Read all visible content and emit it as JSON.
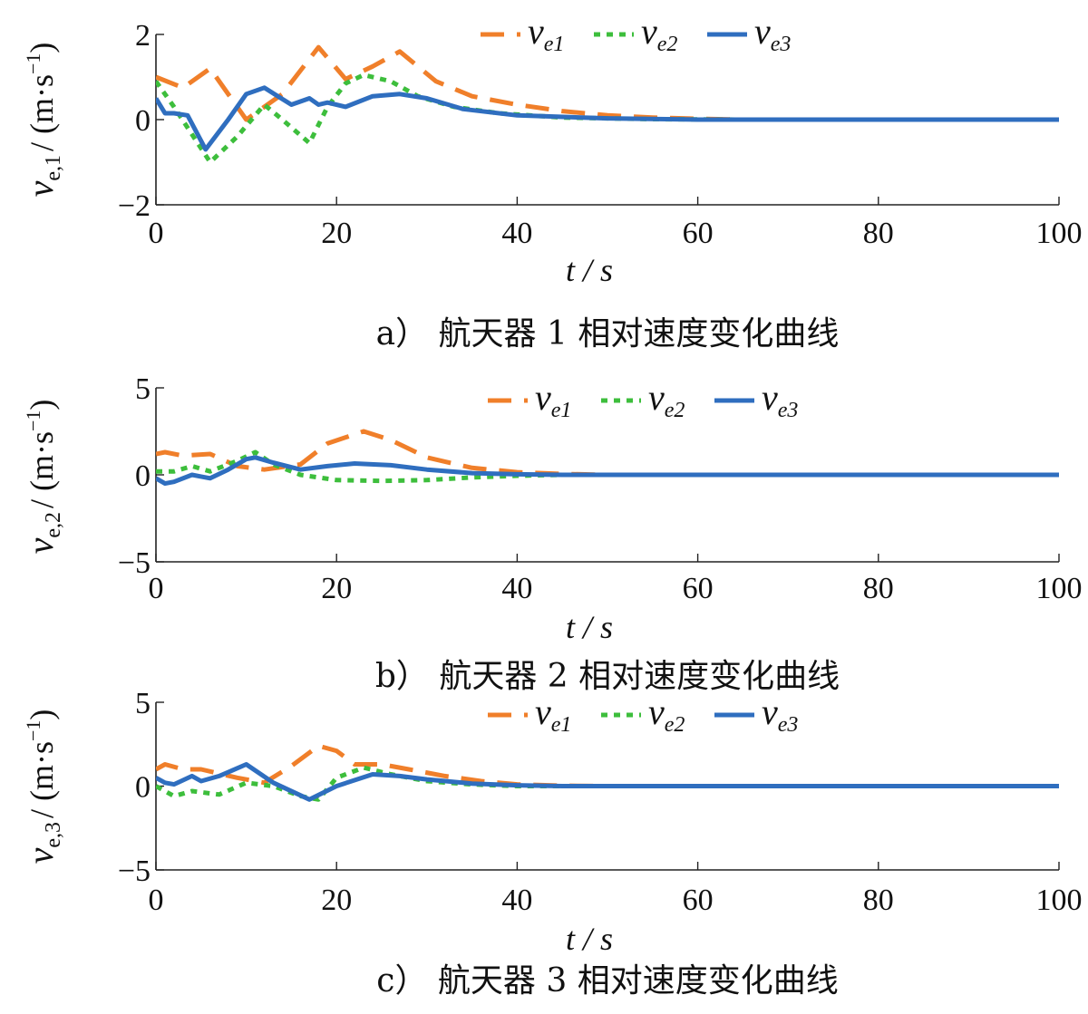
{
  "chart_data": [
    {
      "type": "line",
      "caption": "a） 航天器 1 相对速度变化曲线",
      "xlabel": "t / s",
      "ylabel": "v_{e,1} / (m·s^{-1})",
      "ylabel_main": "v",
      "ylabel_sub": "e,1",
      "ylabel_unit": "/ (m·s",
      "ylabel_exp": "−1",
      "ylabel_close": ")",
      "xlim": [
        0,
        100
      ],
      "ylim": [
        -2,
        2
      ],
      "xticks": [
        0,
        20,
        40,
        60,
        80,
        100
      ],
      "yticks": [
        -2,
        0,
        2
      ],
      "xtick_labels": [
        "0",
        "20",
        "40",
        "60",
        "80",
        "100"
      ],
      "ytick_labels": [
        "−2",
        "0",
        "2"
      ],
      "grid": false,
      "legend_position": "top",
      "series": [
        {
          "name": "v_e1",
          "name_main": "v",
          "name_sub": "e1",
          "color": "#F07F2A",
          "style": "dashed",
          "x": [
            0,
            3,
            6,
            10,
            14,
            18,
            21,
            24,
            27,
            31,
            35,
            40,
            45,
            50,
            55,
            60,
            65,
            70,
            100
          ],
          "y": [
            1.0,
            0.75,
            1.2,
            0.0,
            0.6,
            1.7,
            0.95,
            1.25,
            1.6,
            0.9,
            0.55,
            0.35,
            0.2,
            0.1,
            0.05,
            0.02,
            0.0,
            0.0,
            0.0
          ]
        },
        {
          "name": "v_e2",
          "name_main": "v",
          "name_sub": "e2",
          "color": "#3DBE3C",
          "style": "dotted",
          "x": [
            0,
            2,
            6,
            9,
            12,
            14,
            17,
            19,
            21,
            23,
            26,
            29,
            33,
            38,
            45,
            55,
            65,
            100
          ],
          "y": [
            0.9,
            0.3,
            -1.0,
            -0.4,
            0.35,
            0.0,
            -0.55,
            0.3,
            0.85,
            1.05,
            0.9,
            0.55,
            0.3,
            0.15,
            0.05,
            0.01,
            0.0,
            0.0
          ]
        },
        {
          "name": "v_e3",
          "name_main": "v",
          "name_sub": "e3",
          "color": "#2F6EBF",
          "style": "solid",
          "x": [
            0,
            1,
            2,
            3.5,
            5.5,
            8,
            10,
            12,
            13.5,
            15,
            17,
            18,
            19,
            21,
            24,
            27,
            30,
            34,
            40,
            50,
            60,
            100
          ],
          "y": [
            0.5,
            0.15,
            0.15,
            0.1,
            -0.7,
            0.0,
            0.6,
            0.75,
            0.55,
            0.35,
            0.5,
            0.35,
            0.4,
            0.3,
            0.55,
            0.6,
            0.5,
            0.25,
            0.1,
            0.03,
            0.0,
            0.0
          ]
        }
      ]
    },
    {
      "type": "line",
      "caption": "b） 航天器 2 相对速度变化曲线",
      "xlabel": "t / s",
      "ylabel": "v_{e,2} / (m·s^{-1})",
      "ylabel_main": "v",
      "ylabel_sub": "e,2",
      "ylabel_unit": "/ (m·s",
      "ylabel_exp": "−1",
      "ylabel_close": ")",
      "xlim": [
        0,
        100
      ],
      "ylim": [
        -5,
        5
      ],
      "xticks": [
        0,
        20,
        40,
        60,
        80,
        100
      ],
      "yticks": [
        -5,
        0,
        5
      ],
      "xtick_labels": [
        "0",
        "20",
        "40",
        "60",
        "80",
        "100"
      ],
      "ytick_labels": [
        "−5",
        "0",
        "5"
      ],
      "grid": false,
      "legend_position": "top",
      "series": [
        {
          "name": "v_e1",
          "name_main": "v",
          "name_sub": "e1",
          "color": "#F07F2A",
          "style": "dashed",
          "x": [
            0,
            1,
            3,
            6,
            9,
            12,
            16,
            19,
            23,
            26,
            30,
            35,
            40,
            45,
            50,
            100
          ],
          "y": [
            1.2,
            1.3,
            1.1,
            1.2,
            0.5,
            0.3,
            0.6,
            1.8,
            2.5,
            2.0,
            1.0,
            0.4,
            0.15,
            0.05,
            0.0,
            0.0
          ]
        },
        {
          "name": "v_e2",
          "name_main": "v",
          "name_sub": "e2",
          "color": "#3DBE3C",
          "style": "dotted",
          "x": [
            0,
            2,
            4,
            6,
            9,
            11,
            13,
            16,
            20,
            25,
            30,
            35,
            40,
            45,
            50,
            100
          ],
          "y": [
            0.2,
            0.2,
            0.5,
            0.2,
            0.8,
            1.3,
            0.6,
            0.0,
            -0.3,
            -0.35,
            -0.3,
            -0.15,
            -0.05,
            0.0,
            0.0,
            0.0
          ]
        },
        {
          "name": "v_e3",
          "name_main": "v",
          "name_sub": "e3",
          "color": "#2F6EBF",
          "style": "solid",
          "x": [
            0,
            1,
            2,
            4,
            5,
            6,
            8,
            10,
            11,
            13,
            16,
            19,
            22,
            26,
            30,
            35,
            40,
            45,
            50,
            100
          ],
          "y": [
            -0.2,
            -0.5,
            -0.4,
            0.0,
            -0.1,
            -0.2,
            0.3,
            0.9,
            1.0,
            0.7,
            0.3,
            0.5,
            0.65,
            0.55,
            0.3,
            0.1,
            0.03,
            0.0,
            0.0,
            0.0
          ]
        }
      ]
    },
    {
      "type": "line",
      "caption": "c） 航天器 3 相对速度变化曲线",
      "xlabel": "t / s",
      "ylabel": "v_{e,3} / (m·s^{-1})",
      "ylabel_main": "v",
      "ylabel_sub": "e,3",
      "ylabel_unit": "/ (m·s",
      "ylabel_exp": "−1",
      "ylabel_close": ")",
      "xlim": [
        0,
        100
      ],
      "ylim": [
        -5,
        5
      ],
      "xticks": [
        0,
        20,
        40,
        60,
        80,
        100
      ],
      "yticks": [
        -5,
        0,
        5
      ],
      "xtick_labels": [
        "0",
        "20",
        "40",
        "60",
        "80",
        "100"
      ],
      "ytick_labels": [
        "−5",
        "0",
        "5"
      ],
      "grid": false,
      "legend_position": "top",
      "series": [
        {
          "name": "v_e1",
          "name_main": "v",
          "name_sub": "e1",
          "color": "#F07F2A",
          "style": "dashed",
          "x": [
            0,
            1,
            3,
            5,
            9,
            12,
            15,
            18,
            20,
            22,
            25,
            28,
            32,
            36,
            40,
            45,
            50,
            100
          ],
          "y": [
            1.0,
            1.3,
            1.0,
            1.0,
            0.5,
            0.2,
            1.2,
            2.4,
            2.1,
            1.3,
            1.3,
            1.0,
            0.6,
            0.3,
            0.1,
            0.02,
            0.0,
            0.0
          ]
        },
        {
          "name": "v_e2",
          "name_main": "v",
          "name_sub": "e2",
          "color": "#3DBE3C",
          "style": "dotted",
          "x": [
            0,
            2,
            4,
            7,
            10,
            13,
            16,
            18,
            20,
            23,
            26,
            30,
            35,
            40,
            50,
            100
          ],
          "y": [
            0.0,
            -0.6,
            -0.3,
            -0.5,
            0.2,
            0.0,
            -0.6,
            -0.8,
            0.5,
            1.1,
            0.7,
            0.3,
            0.1,
            0.0,
            0.0,
            0.0
          ]
        },
        {
          "name": "v_e3",
          "name_main": "v",
          "name_sub": "e3",
          "color": "#2F6EBF",
          "style": "solid",
          "x": [
            0,
            1,
            2,
            4,
            5,
            7,
            10,
            13,
            17,
            20,
            24,
            27,
            30,
            35,
            40,
            45,
            50,
            100
          ],
          "y": [
            0.5,
            0.2,
            0.1,
            0.6,
            0.3,
            0.6,
            1.3,
            0.2,
            -0.8,
            0.0,
            0.7,
            0.6,
            0.4,
            0.15,
            0.05,
            0.0,
            0.0,
            0.0
          ]
        }
      ]
    }
  ]
}
